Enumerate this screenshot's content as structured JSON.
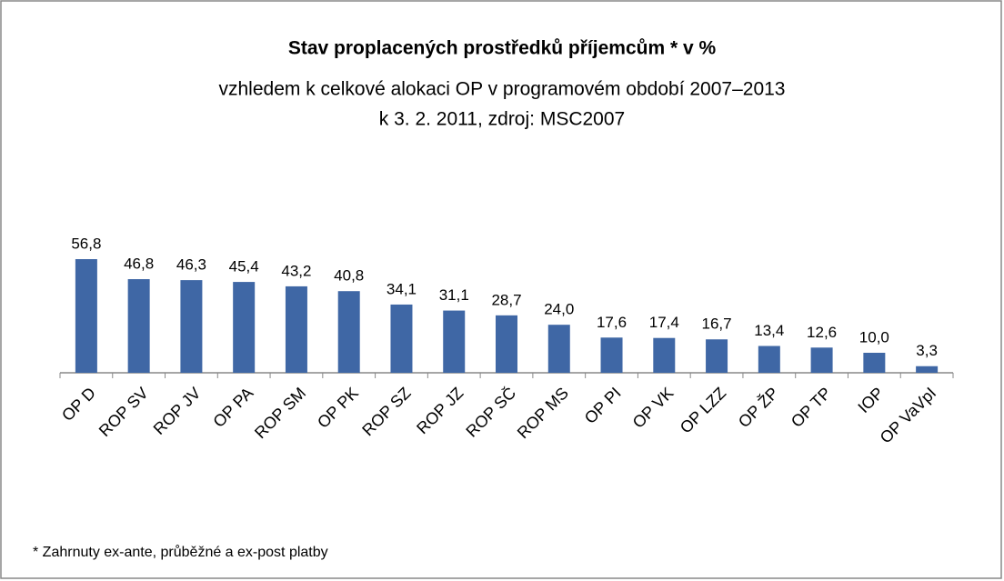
{
  "chart_data": {
    "type": "bar",
    "title": "Stav proplacených prostředků příjemcům * v %",
    "subtitle": "vzhledem k celkové alokaci OP v programovém období  2007–2013",
    "subtitle2": "k 3. 2. 2011, zdroj: MSC2007",
    "footnote": "* Zahrnuty ex-ante, průběžné a ex-post platby",
    "categories": [
      "OP D",
      "ROP SV",
      "ROP JV",
      "OP PA",
      "ROP SM",
      "OP PK",
      "ROP SZ",
      "ROP JZ",
      "ROP SČ",
      "ROP MS",
      "OP PI",
      "OP VK",
      "OP LZZ",
      "OP ŽP",
      "OP TP",
      "IOP",
      "OP VaVpI"
    ],
    "values": [
      56.8,
      46.8,
      46.3,
      45.4,
      43.2,
      40.8,
      34.1,
      31.1,
      28.7,
      24.0,
      17.6,
      17.4,
      16.7,
      13.4,
      12.6,
      10.0,
      3.3
    ],
    "value_labels": [
      "56,8",
      "46,8",
      "46,3",
      "45,4",
      "43,2",
      "40,8",
      "34,1",
      "31,1",
      "28,7",
      "24,0",
      "17,6",
      "17,4",
      "16,7",
      "13,4",
      "12,6",
      "10,0",
      "3,3"
    ],
    "color": "#3f67a5"
  }
}
